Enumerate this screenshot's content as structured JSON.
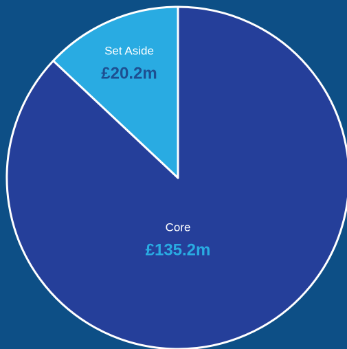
{
  "chart_data": {
    "type": "pie",
    "categories": [
      "Set Aside",
      "Core"
    ],
    "values": [
      20.2,
      135.2
    ],
    "value_labels": [
      "£20.2m",
      "£135.2m"
    ],
    "colors": [
      "#29abe2",
      "#253f9a"
    ],
    "label_colors": [
      "#1d4f91",
      "#29abe2"
    ]
  }
}
